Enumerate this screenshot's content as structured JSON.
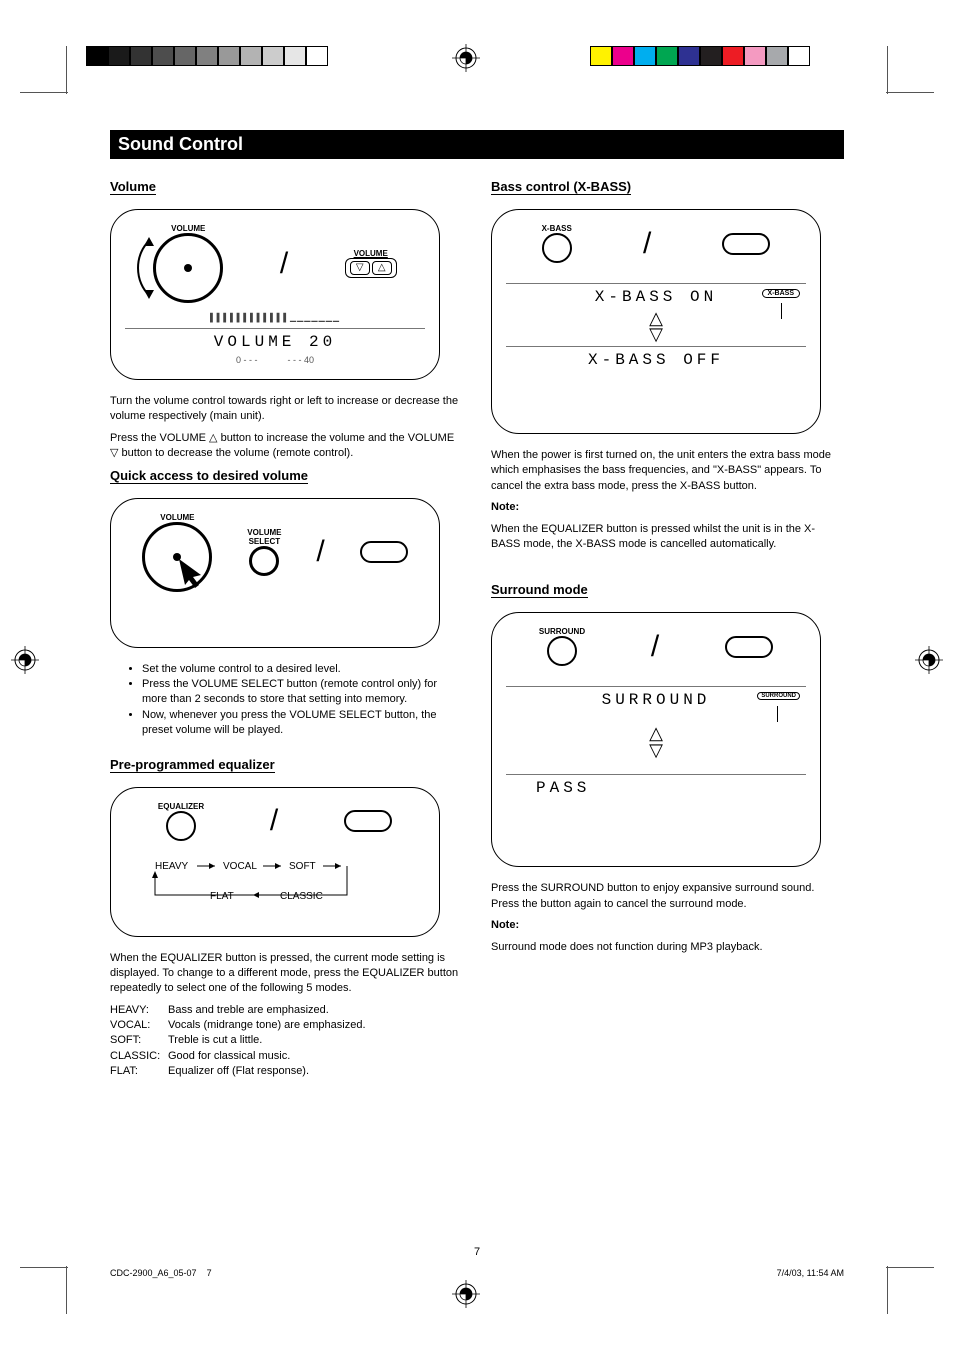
{
  "registration": {
    "grey_swatches": [
      "#000000",
      "#1a1a1a",
      "#333333",
      "#4d4d4d",
      "#666666",
      "#808080",
      "#999999",
      "#b3b3b3",
      "#cccccc",
      "#e6e6e6",
      "#ffffff"
    ],
    "color_swatches": [
      "#fff200",
      "#ec008c",
      "#00aeef",
      "#00a651",
      "#2e3192",
      "#231f20",
      "#ed1c24",
      "#f49ac1",
      "#a7a9ac",
      "#ffffff"
    ]
  },
  "page_number": "7",
  "doc_ref": "CDC-2900_A6_05-07",
  "doc_date": "7/4/03, 11:54 AM",
  "title_bar": "Sound Control",
  "tri_up": "△",
  "tri_down": "▽",
  "left": {
    "volume": {
      "title": "Volume",
      "icon_label_knob": "VOLUME",
      "icon_label_buttons": "VOLUME",
      "lcd_text": "VOLUME 20",
      "lcd_range_left": "0 - - -",
      "lcd_range_right": "- - - 40",
      "para_main": "Turn the volume control towards right or left to increase or decrease the volume respectively (main unit).",
      "para_remote_prefix": "Press the VOLUME ",
      "para_remote_mid": " button to increase the volume and the VOLUME ",
      "para_remote_suffix": " button to decrease the volume (remote control)."
    },
    "quick_volume": {
      "title": "Quick access to desired volume",
      "knob_label": "VOLUME",
      "select_label": "VOLUME\nSELECT",
      "step1": "Set the volume control to a desired level.",
      "step2": "Press the VOLUME SELECT button (remote control only) for more than 2 seconds to store that setting into memory.",
      "step3": "Now, whenever you press the VOLUME SELECT button, the preset volume will be played."
    },
    "equalizer": {
      "title": "Pre-programmed equalizer",
      "btn_label": "EQUALIZER",
      "cycle": [
        "HEAVY",
        "VOCAL",
        "SOFT",
        "CLASSIC",
        "FLAT"
      ],
      "instr": "When the EQUALIZER button is pressed, the current mode setting is displayed. To change to a different mode, press the EQUALIZER button repeatedly to select one of the following 5 modes.",
      "heavy": {
        "k": "HEAVY:",
        "v": "Bass and treble are emphasized."
      },
      "vocal": {
        "k": "VOCAL:",
        "v": "Vocals (midrange tone) are emphasized."
      },
      "soft": {
        "k": "SOFT:",
        "v": "Treble is cut a little."
      },
      "classic": {
        "k": "CLASSIC:",
        "v": "Good for classical music."
      },
      "flat": {
        "k": "FLAT:",
        "v": "Equalizer off (Flat response)."
      }
    }
  },
  "right": {
    "xbass": {
      "title": "Bass control (X-BASS)",
      "btn_label": "X-BASS",
      "lcd_on": "X-BASS ON",
      "badge_on": "X-BASS",
      "lcd_off": "X-BASS OFF",
      "instr": "When the power is first turned on, the unit enters the extra bass mode which emphasises the bass frequencies, and \"X-BASS\" appears. To cancel the extra bass mode, press the X-BASS button.",
      "note_label": "Note:",
      "note_text": "When the EQUALIZER button is pressed whilst the unit is in the X-BASS mode, the X-BASS mode is cancelled automatically."
    },
    "surround": {
      "title": "Surround mode",
      "btn_label": "SURROUND",
      "lcd_on": "SURROUND",
      "badge_on": "SURROUND",
      "lcd_off": "PASS",
      "instr": "Press the SURROUND button to enjoy expansive surround sound. Press the button again to cancel the surround mode.",
      "note_label": "Note:",
      "note_text": "Surround mode does not function during MP3 playback."
    }
  }
}
